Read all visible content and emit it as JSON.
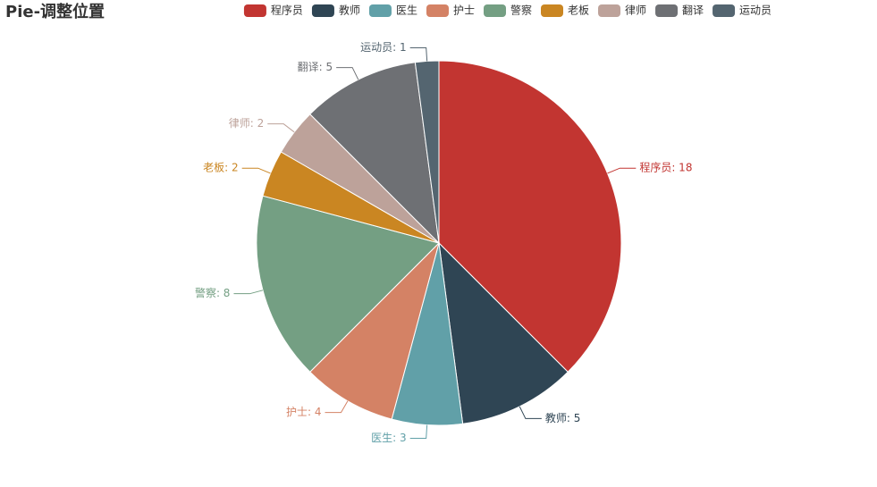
{
  "chart_data": {
    "type": "pie",
    "title": "Pie-调整位置",
    "categories": [
      "程序员",
      "教师",
      "医生",
      "护士",
      "警察",
      "老板",
      "律师",
      "翻译",
      "运动员"
    ],
    "values": [
      18,
      5,
      3,
      4,
      8,
      2,
      2,
      5,
      1
    ],
    "value_labels": [
      "程序员: 18",
      "教师: 5",
      "医生: 3",
      "护士: 4",
      "警察: 8",
      "老板: 2",
      "律师: 2",
      "翻译: 5",
      "运动员: 1"
    ],
    "colors": [
      "#c23531",
      "#2f4554",
      "#61a0a8",
      "#d48265",
      "#749f83",
      "#ca8622",
      "#bda29a",
      "#6e7074",
      "#546570"
    ],
    "legend": "top"
  }
}
